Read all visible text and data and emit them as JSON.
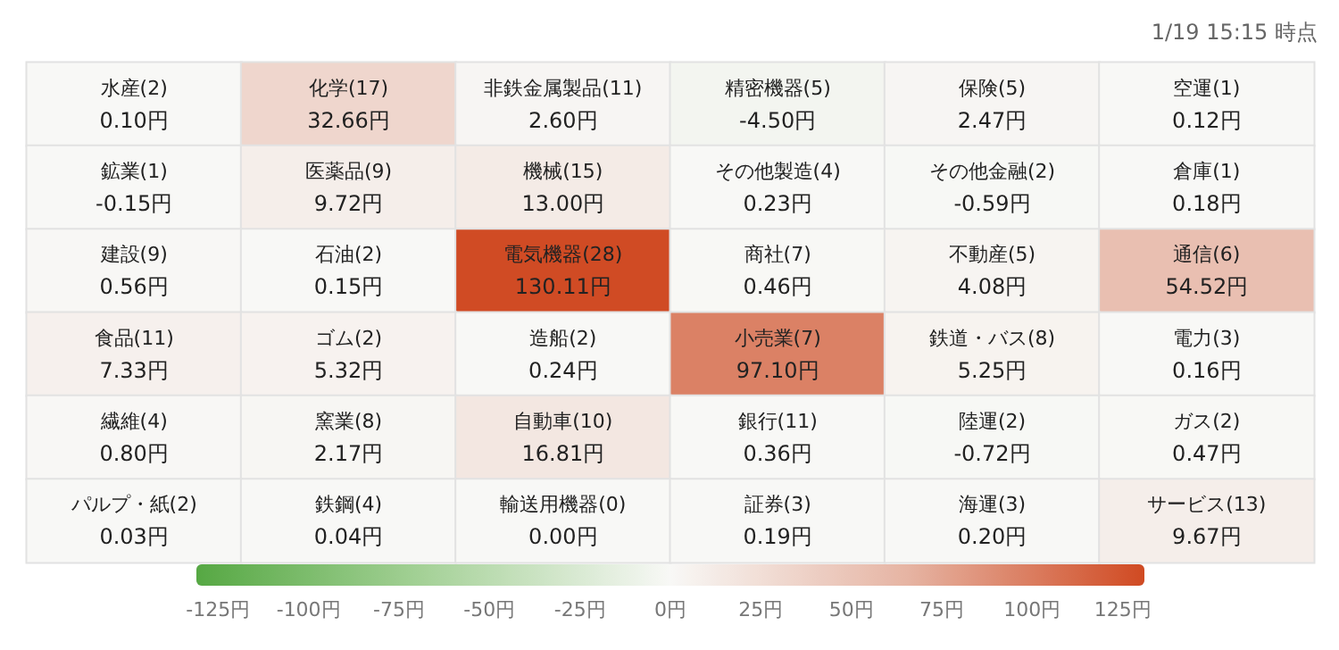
{
  "chart_data": {
    "type": "heatmap",
    "annotations": [
      "1/19 15:15 時点"
    ],
    "categories": [
      null,
      null,
      null,
      null,
      null,
      null
    ],
    "y_categories": [
      null,
      null,
      null,
      null,
      null,
      null
    ],
    "cells": [
      [
        0.1,
        32.66,
        2.6,
        -4.5,
        2.47,
        0.12
      ],
      [
        -0.15,
        9.72,
        13.0,
        0.23,
        -0.59,
        0.18
      ],
      [
        0.56,
        0.15,
        130.11,
        0.46,
        4.08,
        54.52
      ],
      [
        7.33,
        5.32,
        0.24,
        97.1,
        5.25,
        0.16
      ],
      [
        0.8,
        2.17,
        16.81,
        0.36,
        -0.72,
        0.47
      ],
      [
        0.03,
        0.04,
        0.0,
        0.19,
        0.2,
        9.67
      ]
    ],
    "cell_labels": [
      [
        "水産(2)\n0.10円",
        "化学(17)\n32.66円",
        "非鉄金属製品(11)\n2.60円",
        "精密機器(5)\n-4.50円",
        "保険(5)\n2.47円",
        "空運(1)\n0.12円"
      ],
      [
        "鉱業(1)\n-0.15円",
        "医薬品(9)\n9.72円",
        "機械(15)\n13.00円",
        "その他製造(4)\n0.23円",
        "その他金融(2)\n-0.59円",
        "倉庫(1)\n0.18円"
      ],
      [
        "建設(9)\n0.56円",
        "石油(2)\n0.15円",
        "電気機器(28)\n130.11円",
        "商社(7)\n0.46円",
        "不動産(5)\n4.08円",
        "通信(6)\n54.52円"
      ],
      [
        "食品(11)\n7.33円",
        "ゴム(2)\n5.32円",
        "造船(2)\n0.24円",
        "小売業(7)\n97.10円",
        "鉄道・バス(8)\n5.25円",
        "電力(3)\n0.16円"
      ],
      [
        "繊維(4)\n0.80円",
        "窯業(8)\n2.17円",
        "自動車(10)\n16.81円",
        "銀行(11)\n0.36円",
        "陸運(2)\n-0.72円",
        "ガス(2)\n0.47円"
      ],
      [
        "パルプ・紙(2)\n0.03円",
        "鉄鋼(4)\n0.04円",
        "輸送用機器(0)\n0.00円",
        "証券(3)\n0.19円",
        "海運(3)\n0.20円",
        "サービス(13)\n9.67円"
      ]
    ],
    "clim": [
      -131,
      131
    ],
    "cticks": [
      {
        "value": -125,
        "label": "-125円"
      },
      {
        "value": -100,
        "label": "-100円"
      },
      {
        "value": -75,
        "label": "-75円"
      },
      {
        "value": -50,
        "label": "-50円"
      },
      {
        "value": -25,
        "label": "-25円"
      },
      {
        "value": 0,
        "label": "0円"
      },
      {
        "value": 25,
        "label": "25円"
      },
      {
        "value": 50,
        "label": "50円"
      },
      {
        "value": 75,
        "label": "75円"
      },
      {
        "value": 100,
        "label": "100円"
      },
      {
        "value": 125,
        "label": "125円"
      }
    ]
  }
}
